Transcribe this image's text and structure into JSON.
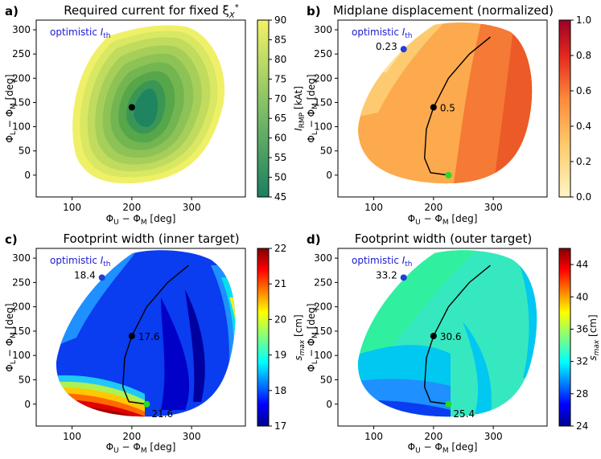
{
  "colors": {
    "annotation_blue": "#1a1ad0",
    "marker_blue": "#1f3fd6",
    "marker_green": "#22dd22",
    "marker_black": "#000000"
  },
  "chart_data": [
    {
      "panel": "a)",
      "type": "contour",
      "title": "Required current for fixed ξ",
      "title_sub": "X",
      "title_sup": "*",
      "xlabel": "Φ",
      "xlabel_sub1": "U",
      "xlabel_mid": " − Φ",
      "xlabel_sub2": "M",
      "xlabel_unit": " [deg]",
      "ylabel": "Φ",
      "ylabel_sub1": "L",
      "ylabel_mid": " − Φ",
      "ylabel_sub2": "M",
      "ylabel_unit": " [deg]",
      "xlim": [
        40,
        390
      ],
      "ylim": [
        -45,
        320
      ],
      "xticks": [
        100,
        200,
        300
      ],
      "yticks": [
        0,
        50,
        100,
        150,
        200,
        250,
        300
      ],
      "annotation": {
        "text": "optimistic ",
        "italic": "I",
        "sub": "th"
      },
      "colorbar": {
        "label": "I",
        "label_sub": "RMP",
        "label_unit": " [kAt]",
        "range": [
          45,
          90
        ],
        "ticks": [
          45,
          50,
          55,
          60,
          65,
          70,
          75,
          80,
          85,
          90
        ],
        "colormap": "summer"
      },
      "markers": [
        {
          "x": 200,
          "y": 140,
          "color": "black"
        }
      ]
    },
    {
      "panel": "b)",
      "type": "contour",
      "title": "Midplane displacement (normalized)",
      "xlabel": "Φ",
      "xlabel_sub1": "U",
      "xlabel_mid": " − Φ",
      "xlabel_sub2": "M",
      "xlabel_unit": " [deg]",
      "ylabel": "Φ",
      "ylabel_sub1": "L",
      "ylabel_mid": " − Φ",
      "ylabel_sub2": "M",
      "ylabel_unit": " [deg]",
      "xlim": [
        40,
        390
      ],
      "ylim": [
        -45,
        320
      ],
      "xticks": [
        100,
        200,
        300
      ],
      "yticks": [
        0,
        50,
        100,
        150,
        200,
        250,
        300
      ],
      "annotation": {
        "text": "optimistic ",
        "italic": "I",
        "sub": "th"
      },
      "colorbar": {
        "label": "",
        "range": [
          0.0,
          1.0
        ],
        "ticks": [
          "0.0",
          "0.2",
          "0.4",
          "0.6",
          "0.8",
          "1.0"
        ],
        "colormap": "YlOrRd"
      },
      "markers": [
        {
          "x": 150,
          "y": 260,
          "color": "blue",
          "label": "0.23"
        },
        {
          "x": 200,
          "y": 140,
          "color": "black",
          "label": "0.5"
        },
        {
          "x": 225,
          "y": 0,
          "color": "green"
        }
      ],
      "path": [
        [
          225,
          0
        ],
        [
          195,
          5
        ],
        [
          185,
          35
        ],
        [
          188,
          95
        ],
        [
          200,
          140
        ],
        [
          225,
          200
        ],
        [
          260,
          250
        ],
        [
          295,
          285
        ]
      ]
    },
    {
      "panel": "c)",
      "type": "contour",
      "title": "Footprint width (inner target)",
      "xlabel": "Φ",
      "xlabel_sub1": "U",
      "xlabel_mid": " − Φ",
      "xlabel_sub2": "M",
      "xlabel_unit": " [deg]",
      "ylabel": "Φ",
      "ylabel_sub1": "L",
      "ylabel_mid": " − Φ",
      "ylabel_sub2": "M",
      "ylabel_unit": " [deg]",
      "xlim": [
        40,
        390
      ],
      "ylim": [
        -45,
        320
      ],
      "xticks": [
        100,
        200,
        300
      ],
      "yticks": [
        0,
        50,
        100,
        150,
        200,
        250,
        300
      ],
      "annotation": {
        "text": "optimistic ",
        "italic": "I",
        "sub": "th"
      },
      "colorbar": {
        "label": "s",
        "label_sub": "max",
        "label_unit": " [cm]",
        "range": [
          17,
          22
        ],
        "ticks": [
          17,
          18,
          19,
          20,
          21,
          22
        ],
        "colormap": "jet"
      },
      "markers": [
        {
          "x": 150,
          "y": 260,
          "color": "blue",
          "label": "18.4"
        },
        {
          "x": 200,
          "y": 140,
          "color": "black",
          "label": "17.6"
        },
        {
          "x": 225,
          "y": 0,
          "color": "green",
          "label": "21.6"
        }
      ],
      "path": [
        [
          225,
          0
        ],
        [
          195,
          5
        ],
        [
          185,
          35
        ],
        [
          188,
          95
        ],
        [
          200,
          140
        ],
        [
          225,
          200
        ],
        [
          260,
          250
        ],
        [
          295,
          285
        ]
      ]
    },
    {
      "panel": "d)",
      "type": "contour",
      "title": "Footprint width (outer target)",
      "xlabel": "Φ",
      "xlabel_sub1": "U",
      "xlabel_mid": " − Φ",
      "xlabel_sub2": "M",
      "xlabel_unit": " [deg]",
      "ylabel": "Φ",
      "ylabel_sub1": "L",
      "ylabel_mid": " − Φ",
      "ylabel_sub2": "M",
      "ylabel_unit": " [deg]",
      "xlim": [
        40,
        390
      ],
      "ylim": [
        -45,
        320
      ],
      "xticks": [
        100,
        200,
        300
      ],
      "yticks": [
        0,
        50,
        100,
        150,
        200,
        250,
        300
      ],
      "annotation": {
        "text": "optimistic ",
        "italic": "I",
        "sub": "th"
      },
      "colorbar": {
        "label": "s",
        "label_sub": "max",
        "label_unit": " [cm]",
        "range": [
          24,
          46
        ],
        "ticks": [
          24,
          28,
          32,
          36,
          40,
          44
        ],
        "colormap": "jet"
      },
      "markers": [
        {
          "x": 150,
          "y": 260,
          "color": "blue",
          "label": "33.2"
        },
        {
          "x": 200,
          "y": 140,
          "color": "black",
          "label": "30.6"
        },
        {
          "x": 225,
          "y": 0,
          "color": "green",
          "label": "25.4"
        }
      ],
      "path": [
        [
          225,
          0
        ],
        [
          195,
          5
        ],
        [
          185,
          35
        ],
        [
          188,
          95
        ],
        [
          200,
          140
        ],
        [
          225,
          200
        ],
        [
          260,
          250
        ],
        [
          295,
          285
        ]
      ]
    }
  ]
}
